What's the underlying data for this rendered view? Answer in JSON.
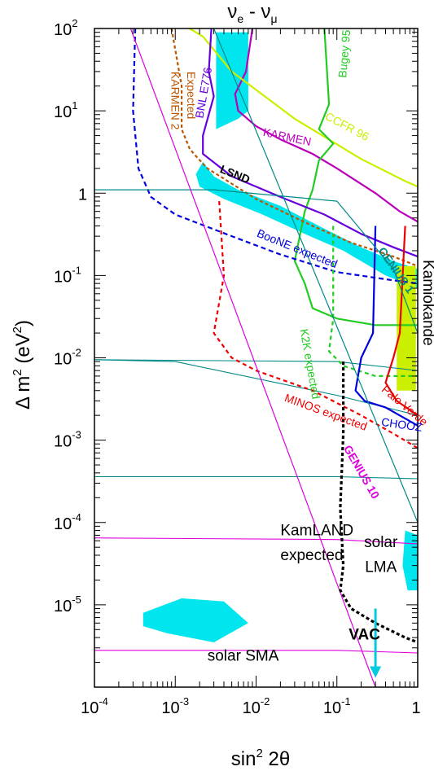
{
  "chart_data": {
    "type": "line",
    "title_main": "ν",
    "title_sub1": "e",
    "title_dash": " - ",
    "title_main2": "ν",
    "title_sub2": "μ",
    "xlabel_main": "sin",
    "xlabel_sup": "2",
    "xlabel_rest": " 2θ",
    "ylabel_main": "Δ m",
    "ylabel_sup": "2",
    "ylabel_rest": "  (eV",
    "ylabel_sup2": "2",
    "ylabel_end": ")",
    "x_scale": "log",
    "y_scale": "log",
    "xlim": [
      0.0001,
      1
    ],
    "ylim": [
      1e-06,
      100
    ],
    "x_ticks": [
      {
        "base": "10",
        "exp": "-4"
      },
      {
        "base": "10",
        "exp": "-3"
      },
      {
        "base": "10",
        "exp": "-2"
      },
      {
        "base": "10",
        "exp": "-1"
      },
      {
        "base": "1",
        "exp": ""
      }
    ],
    "y_ticks": [
      {
        "base": "10",
        "exp": "2"
      },
      {
        "base": "10",
        "exp": "1"
      },
      {
        "base": "1",
        "exp": ""
      },
      {
        "base": "10",
        "exp": "-1"
      },
      {
        "base": "10",
        "exp": "-2"
      },
      {
        "base": "10",
        "exp": "-3"
      },
      {
        "base": "10",
        "exp": "-4"
      },
      {
        "base": "10",
        "exp": "-5"
      }
    ],
    "regions": [
      {
        "name": "LSND",
        "color": "#00e5ee",
        "points": [
          [
            0.0022,
            2.4
          ],
          [
            0.003,
            1.6
          ],
          [
            0.006,
            1.1
          ],
          [
            0.02,
            0.7
          ],
          [
            0.06,
            0.4
          ],
          [
            0.2,
            0.22
          ],
          [
            0.5,
            0.15
          ],
          [
            1,
            0.12
          ],
          [
            1,
            0.07
          ],
          [
            0.4,
            0.1
          ],
          [
            0.12,
            0.2
          ],
          [
            0.04,
            0.32
          ],
          [
            0.012,
            0.55
          ],
          [
            0.004,
            0.85
          ],
          [
            0.002,
            1.2
          ],
          [
            0.0018,
            1.7
          ]
        ]
      },
      {
        "name": "LSND-high",
        "color": "#00e5ee",
        "points": [
          [
            0.0032,
            90
          ],
          [
            0.008,
            90
          ],
          [
            0.008,
            10
          ],
          [
            0.006,
            8
          ],
          [
            0.0032,
            6
          ]
        ]
      },
      {
        "name": "Kamiokande",
        "color": "#ccee00",
        "points": [
          [
            0.55,
            0.13
          ],
          [
            0.95,
            0.13
          ],
          [
            0.95,
            0.004
          ],
          [
            0.55,
            0.004
          ]
        ]
      },
      {
        "name": "solar LMA",
        "color": "#00e5ee",
        "points": [
          [
            0.7,
            8e-05
          ],
          [
            1,
            7e-05
          ],
          [
            1,
            1.5e-05
          ],
          [
            0.75,
            1.5e-05
          ],
          [
            0.65,
            3e-05
          ]
        ]
      },
      {
        "name": "solar SMA",
        "color": "#00e5ee",
        "points": [
          [
            0.0004,
            8e-06
          ],
          [
            0.0012,
            1.2e-05
          ],
          [
            0.004,
            1.1e-05
          ],
          [
            0.008,
            6e-06
          ],
          [
            0.003,
            3.5e-06
          ],
          [
            0.0008,
            4.5e-06
          ],
          [
            0.0004,
            5.5e-06
          ]
        ]
      }
    ],
    "series": [
      {
        "name": "KARMEN",
        "color": "#bb00bb",
        "dash": "",
        "width": 2.2,
        "points": [
          [
            0.009,
            100
          ],
          [
            0.0075,
            30
          ],
          [
            0.0055,
            16
          ],
          [
            0.006,
            10
          ],
          [
            0.01,
            6.5
          ],
          [
            0.02,
            4.5
          ],
          [
            0.05,
            3.0
          ],
          [
            0.1,
            2.0
          ],
          [
            0.3,
            1.0
          ],
          [
            0.6,
            0.6
          ],
          [
            1,
            0.45
          ]
        ]
      },
      {
        "name": "CCFR 96",
        "color": "#ccee00",
        "dash": "",
        "width": 2.2,
        "points": [
          [
            0.0015,
            100
          ],
          [
            0.0022,
            80
          ],
          [
            0.005,
            30
          ],
          [
            0.03,
            8
          ],
          [
            0.2,
            2.6
          ],
          [
            0.7,
            1.4
          ],
          [
            1,
            1.2
          ]
        ]
      },
      {
        "name": "Bugey 95",
        "color": "#22cc22",
        "dash": "",
        "width": 2.2,
        "points": [
          [
            0.07,
            100
          ],
          [
            0.08,
            12
          ],
          [
            0.06,
            6
          ],
          [
            0.09,
            4
          ],
          [
            0.06,
            2.5
          ],
          [
            0.05,
            1.1
          ],
          [
            0.04,
            0.6
          ],
          [
            0.03,
            0.15
          ],
          [
            0.04,
            0.08
          ],
          [
            0.05,
            0.04
          ],
          [
            0.1,
            0.03
          ],
          [
            0.3,
            0.025
          ],
          [
            1,
            0.025
          ]
        ]
      },
      {
        "name": "BNL E776",
        "color": "#6600dd",
        "dash": "",
        "width": 2.2,
        "points": [
          [
            0.0028,
            100
          ],
          [
            0.0026,
            30
          ],
          [
            0.003,
            15
          ],
          [
            0.0022,
            5
          ],
          [
            0.0022,
            3
          ],
          [
            0.005,
            1.6
          ],
          [
            0.02,
            0.9
          ],
          [
            0.07,
            0.55
          ],
          [
            0.2,
            0.32
          ],
          [
            0.5,
            0.22
          ],
          [
            1,
            0.17
          ]
        ]
      },
      {
        "name": "KARMEN 2 Expected",
        "color": "#bb5500",
        "dash": "4 3",
        "width": 2.2,
        "points": [
          [
            0.0009,
            100
          ],
          [
            0.0012,
            20
          ],
          [
            0.0012,
            6
          ],
          [
            0.0015,
            3.5
          ],
          [
            0.0017,
            3
          ],
          [
            0.0025,
            2
          ],
          [
            0.01,
            0.85
          ],
          [
            0.05,
            0.4
          ],
          [
            0.15,
            0.25
          ],
          [
            0.5,
            0.17
          ],
          [
            1,
            0.13
          ]
        ]
      },
      {
        "name": "BooNE expected",
        "color": "#0000dd",
        "dash": "6 4",
        "width": 2.2,
        "points": [
          [
            0.00032,
            100
          ],
          [
            0.0003,
            10
          ],
          [
            0.00035,
            2
          ],
          [
            0.0005,
            0.9
          ],
          [
            0.001,
            0.55
          ],
          [
            0.005,
            0.3
          ],
          [
            0.02,
            0.18
          ],
          [
            0.1,
            0.11
          ],
          [
            0.4,
            0.09
          ],
          [
            1,
            0.08
          ]
        ]
      },
      {
        "name": "MINOS expected",
        "color": "#ee0000",
        "dash": "5 4",
        "width": 2.2,
        "points": [
          [
            0.0035,
            0.8
          ],
          [
            0.004,
            0.1
          ],
          [
            0.003,
            0.02
          ],
          [
            0.005,
            0.01
          ],
          [
            0.01,
            0.007
          ],
          [
            0.05,
            0.004
          ],
          [
            0.2,
            0.002
          ],
          [
            0.5,
            0.0012
          ],
          [
            1,
            0.0008
          ]
        ]
      },
      {
        "name": "K2K expected",
        "color": "#22cc22",
        "dash": "5 4",
        "width": 2.2,
        "points": [
          [
            0.09,
            0.4
          ],
          [
            0.09,
            0.03
          ],
          [
            0.08,
            0.012
          ],
          [
            0.12,
            0.008
          ],
          [
            0.3,
            0.006
          ],
          [
            1,
            0.006
          ]
        ]
      },
      {
        "name": "CHOOZ",
        "color": "#0000dd",
        "dash": "",
        "width": 2.2,
        "points": [
          [
            0.3,
            0.4
          ],
          [
            0.28,
            0.02
          ],
          [
            0.2,
            0.01
          ],
          [
            0.17,
            0.004
          ],
          [
            0.22,
            0.003
          ],
          [
            0.4,
            0.0025
          ],
          [
            1,
            0.0015
          ]
        ]
      },
      {
        "name": "Palo Verde",
        "color": "#ee0000",
        "dash": "",
        "width": 2.2,
        "points": [
          [
            0.7,
            0.4
          ],
          [
            0.6,
            0.02
          ],
          [
            0.5,
            0.01
          ],
          [
            0.4,
            0.005
          ],
          [
            0.55,
            0.003
          ],
          [
            1,
            0.002
          ]
        ]
      },
      {
        "name": "GENIUS 1",
        "color": "#008888",
        "dash": "",
        "width": 1.2,
        "points": [
          [
            0.0001,
            1.1
          ],
          [
            0.003,
            1.1
          ],
          [
            0.1,
            0.8
          ],
          [
            0.5,
            0.12
          ],
          [
            1,
            0.02
          ]
        ]
      },
      {
        "name": "GENIUS 10",
        "color": "#dd00dd",
        "dash": "",
        "width": 1.2,
        "points": [
          [
            0.00028,
            100
          ],
          [
            0.3,
            1e-06
          ]
        ]
      },
      {
        "name": "GENIUS 1 line",
        "color": "#008888",
        "dash": "",
        "width": 1.2,
        "points": [
          [
            0.003,
            100
          ],
          [
            1,
            0.0001
          ]
        ]
      },
      {
        "name": "KamLAND expected",
        "color": "#000000",
        "dash": "4 3",
        "width": 3.2,
        "points": [
          [
            0.12,
            0.009
          ],
          [
            0.12,
            0.0012
          ],
          [
            0.11,
            0.00015
          ],
          [
            0.12,
            3e-05
          ],
          [
            0.11,
            1.5e-05
          ],
          [
            0.15,
            9e-06
          ],
          [
            0.3,
            6e-06
          ],
          [
            0.7,
            4e-06
          ],
          [
            1,
            3.5e-06
          ]
        ]
      }
    ],
    "teal_lines": [
      [
        [
          0.0001,
          0.0095
        ],
        [
          0.1,
          0.009
        ],
        [
          1,
          0.007
        ]
      ],
      [
        [
          0.0001,
          0.00036
        ],
        [
          0.1,
          0.00036
        ],
        [
          1,
          0.00034
        ]
      ],
      [
        [
          0.0001,
          0.0095
        ],
        [
          0.001,
          0.009
        ],
        [
          0.1,
          0.0035
        ],
        [
          1,
          0.002
        ]
      ]
    ],
    "magenta_lines": [
      [
        [
          0.0001,
          6.5e-05
        ],
        [
          0.1,
          6.2e-05
        ],
        [
          1,
          5.5e-05
        ]
      ],
      [
        [
          0.0001,
          2.8e-06
        ],
        [
          0.1,
          2.8e-06
        ],
        [
          1,
          2.6e-06
        ]
      ]
    ],
    "curve_labels": [
      {
        "text": "KARMEN 2",
        "color": "#bb5500",
        "x": 0.0009,
        "y": 30,
        "rot": 90
      },
      {
        "text": "Expected",
        "color": "#bb5500",
        "x": 0.0014,
        "y": 30,
        "rot": 90
      },
      {
        "text": "BNL E776",
        "color": "#6600dd",
        "x": 0.0022,
        "y": 8,
        "rot": -80
      },
      {
        "text": "CCFR 96",
        "color": "#ccee00",
        "x": 0.07,
        "y": 8,
        "rot": 28
      },
      {
        "text": "Bugey 95",
        "color": "#22cc22",
        "x": 0.13,
        "y": 25,
        "rot": -85
      },
      {
        "text": "KARMEN",
        "color": "#bb00bb",
        "x": 0.012,
        "y": 5,
        "rot": 12
      },
      {
        "text": "LSND",
        "color": "#000000",
        "x": 0.0035,
        "y": 1.8,
        "rot": 22
      },
      {
        "text": "BooNE expected",
        "color": "#0000dd",
        "x": 0.01,
        "y": 0.3,
        "rot": 22
      },
      {
        "text": "GENIUS 1",
        "color": "#008888",
        "x": 0.32,
        "y": 0.2,
        "rot": 55
      },
      {
        "text": "K2K expected",
        "color": "#22cc22",
        "x": 0.035,
        "y": 0.022,
        "rot": 80
      },
      {
        "text": "Palo Verde",
        "color": "#ee0000",
        "x": 0.35,
        "y": 0.004,
        "rot": 40
      },
      {
        "text": "MINOS expected",
        "color": "#ee0000",
        "x": 0.022,
        "y": 0.003,
        "rot": 20
      },
      {
        "text": "CHOOZ",
        "color": "#0000dd",
        "x": 0.35,
        "y": 0.0015,
        "rot": 8
      },
      {
        "text": "GENIUS 10",
        "color": "#dd00dd",
        "x": 0.12,
        "y": 0.0008,
        "rot": 60
      }
    ],
    "region_labels": [
      {
        "text": "KamLAND",
        "x": 0.02,
        "y": 7e-05
      },
      {
        "text": "expected",
        "x": 0.02,
        "y": 3.5e-05
      },
      {
        "text": "solar",
        "x": 0.35,
        "y": 5e-05
      },
      {
        "text": "LMA",
        "x": 0.35,
        "y": 2.5e-05
      },
      {
        "text": "solar SMA",
        "x": 0.0025,
        "y": 2.1e-06
      },
      {
        "text": "VAC",
        "x": 0.14,
        "y": 3.8e-06
      },
      {
        "text": "Kamiokande",
        "x": 1.0,
        "y": 0.02
      }
    ],
    "vac_arrow": {
      "color": "#00ccdd",
      "x": 0.3,
      "y_from": 9e-06,
      "y_to": 1.3e-06
    }
  }
}
